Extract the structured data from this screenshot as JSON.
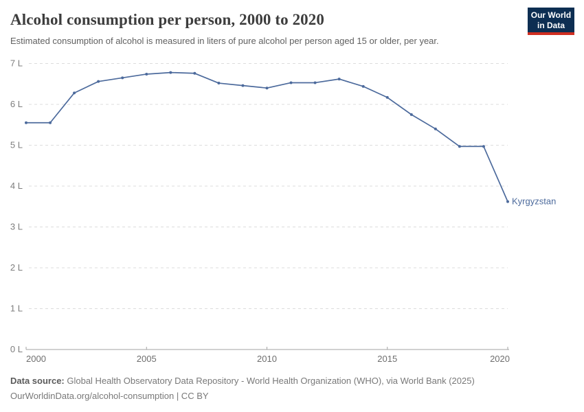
{
  "header": {
    "title": "Alcohol consumption per person, 2000 to 2020",
    "subtitle": "Estimated consumption of alcohol is measured in liters of pure alcohol per person aged 15 or older, per year.",
    "logo": {
      "line1": "Our World",
      "line2": "in Data",
      "bg_color": "#0d2e52",
      "bar_color": "#cf2e21"
    }
  },
  "chart_data": {
    "type": "line",
    "title": "Alcohol consumption per person, 2000 to 2020",
    "unit": "liters of pure alcohol per person",
    "x": [
      2000,
      2001,
      2002,
      2003,
      2004,
      2005,
      2006,
      2007,
      2008,
      2009,
      2010,
      2011,
      2012,
      2013,
      2014,
      2015,
      2016,
      2017,
      2018,
      2019,
      2020
    ],
    "series": [
      {
        "name": "Kyrgyzstan",
        "color": "#4c6a9c",
        "values": [
          5.55,
          5.55,
          6.28,
          6.56,
          6.65,
          6.74,
          6.78,
          6.76,
          6.52,
          6.46,
          6.4,
          6.53,
          6.53,
          6.62,
          6.44,
          6.17,
          5.75,
          5.4,
          4.97,
          4.97,
          3.62
        ]
      }
    ],
    "xlabel": "",
    "ylabel": "",
    "ylim": [
      0,
      7
    ],
    "xlim": [
      2000,
      2020
    ],
    "ytick_values": [
      0,
      1,
      2,
      3,
      4,
      5,
      6,
      7
    ],
    "ytick_labels": [
      "0 L",
      "1 L",
      "2 L",
      "3 L",
      "4 L",
      "5 L",
      "6 L",
      "7 L"
    ],
    "xtick_values": [
      2000,
      2005,
      2010,
      2015,
      2020
    ],
    "grid": "horizontal-dashed",
    "legend_position": "end-of-line-label",
    "colors": {
      "gridline": "#dcdcdc",
      "axis": "#a3a3a3",
      "line": "#4c6a9c"
    }
  },
  "footer": {
    "source_label": "Data source:",
    "source_text": " Global Health Observatory Data Repository - World Health Organization (WHO), via World Bank (2025)",
    "link_line": "OurWorldinData.org/alcohol-consumption | CC BY"
  }
}
